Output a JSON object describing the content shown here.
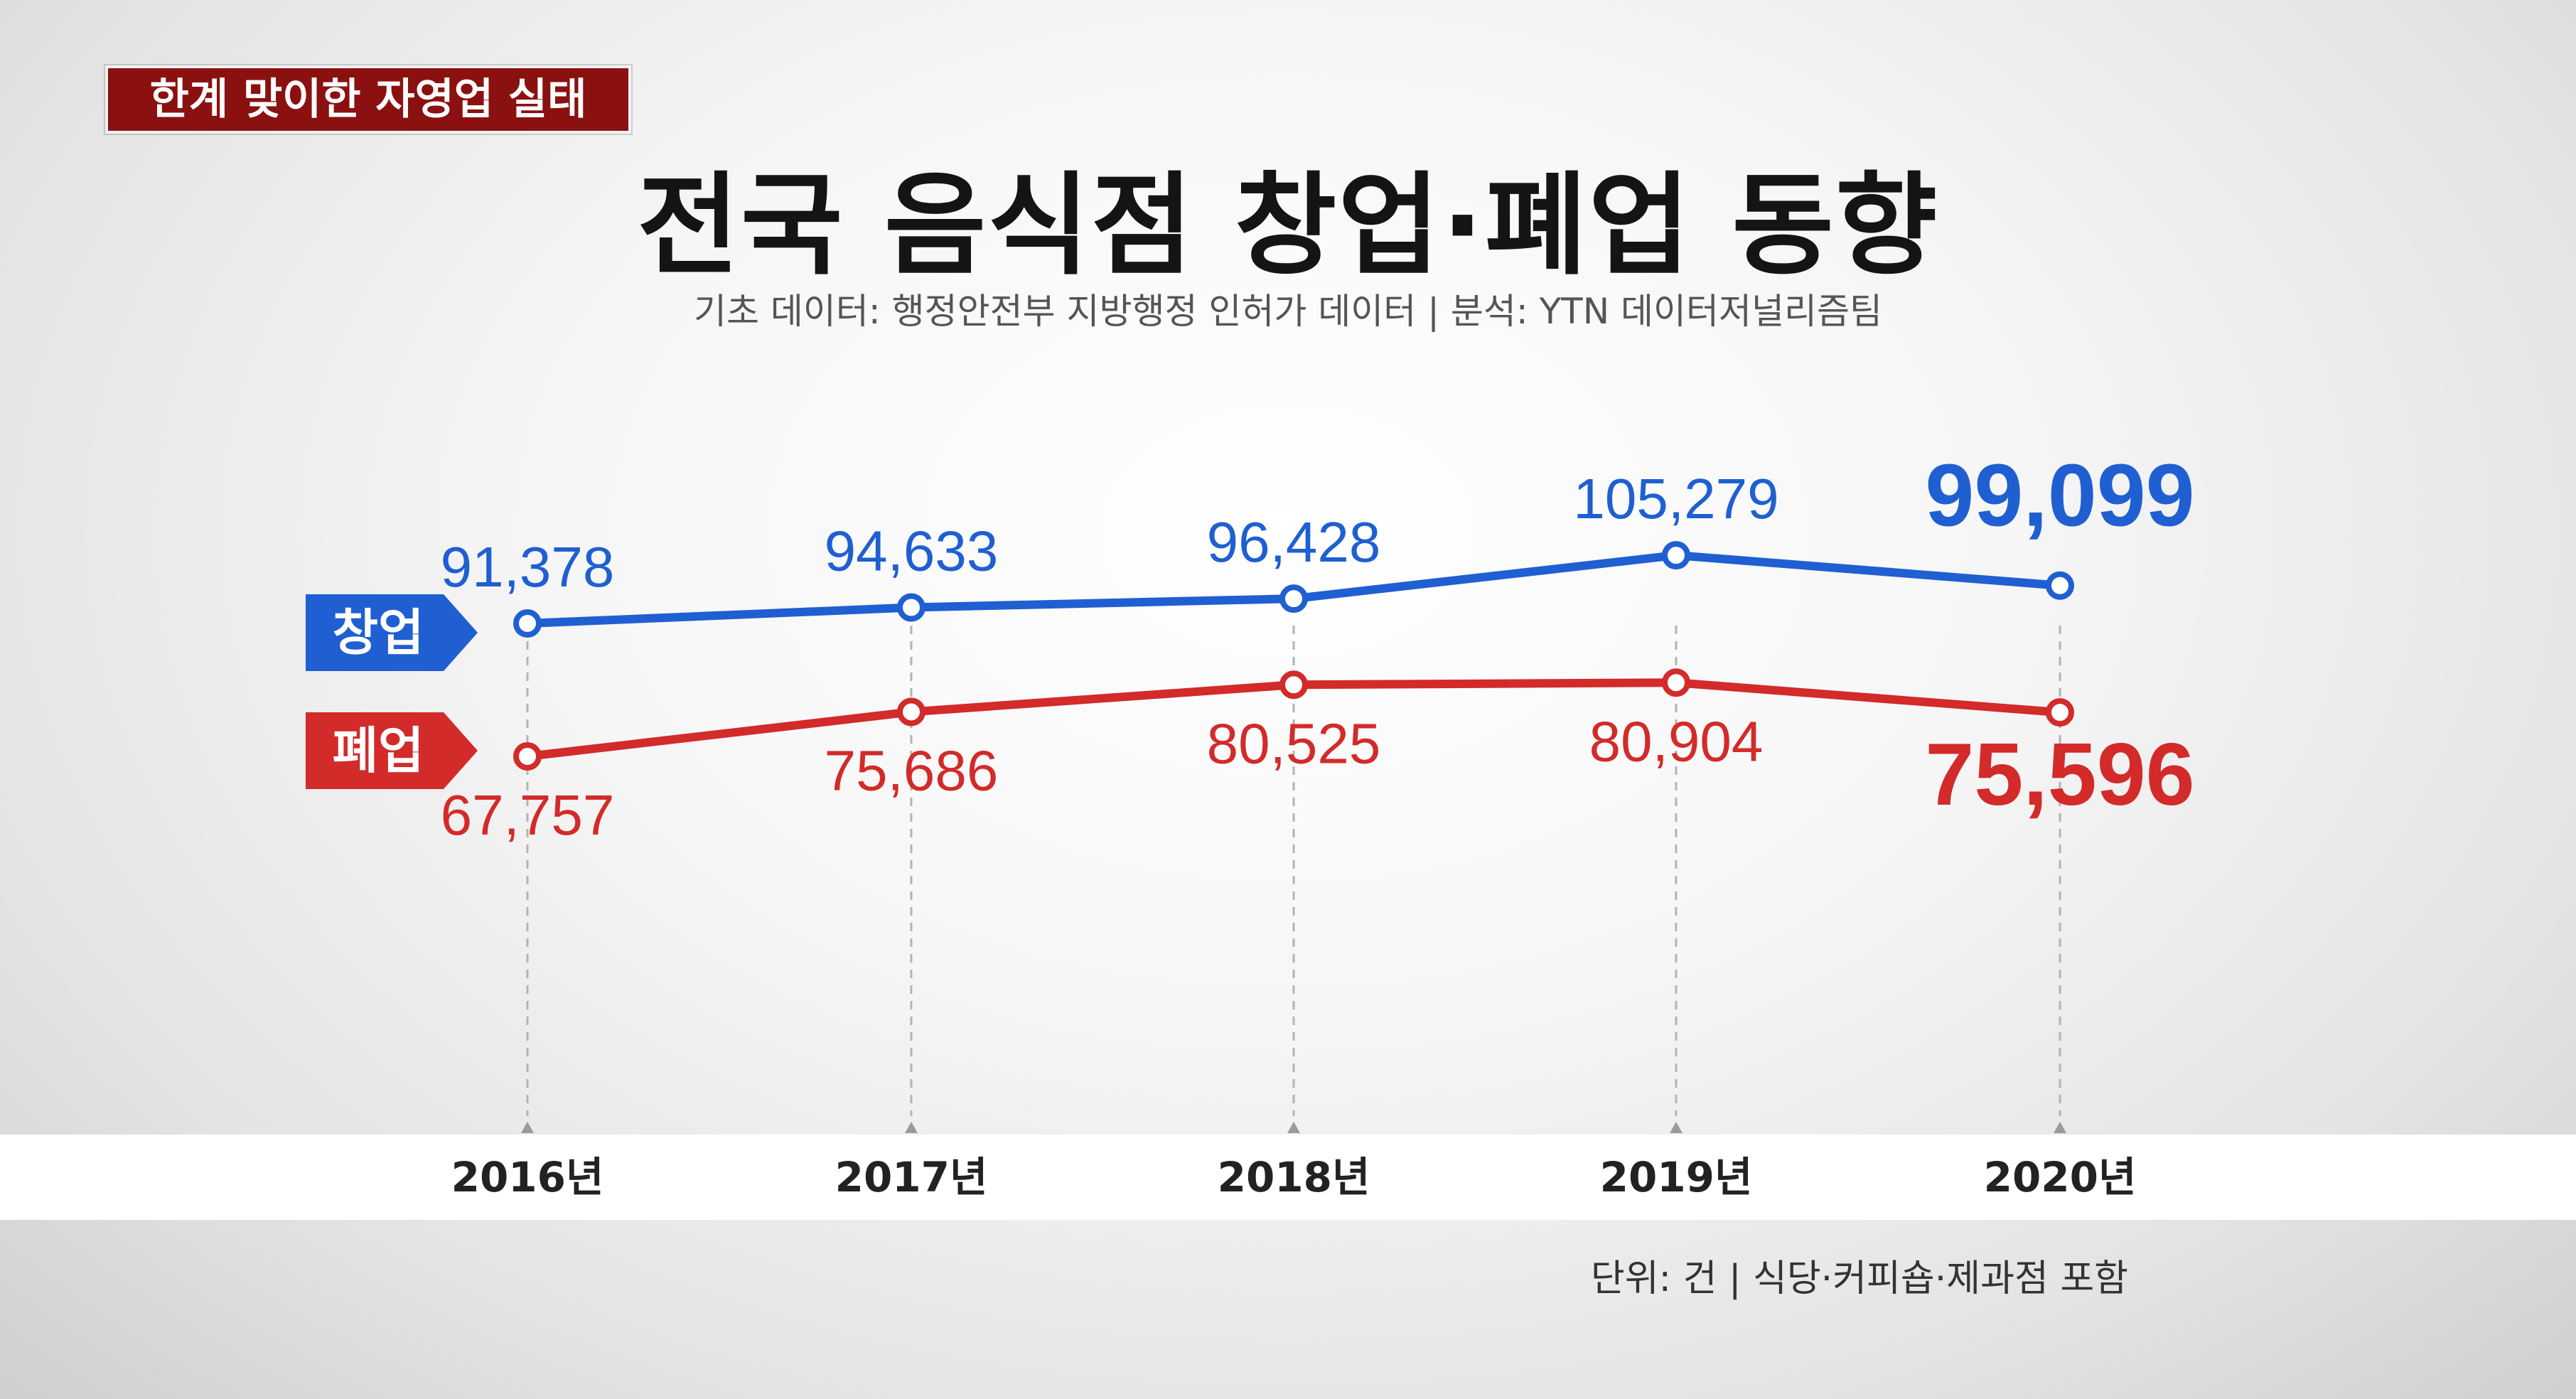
{
  "badge": "한계 맞이한 자영업 실태",
  "title": "전국 음식점 창업·폐업 동향",
  "subtitle": "기초 데이터: 행정안전부 지방행정 인허가 데이터 | 분석: YTN 데이터저널리즘팀",
  "unit_note": "단위: 건 | 식당·커피숍·제과점 포함",
  "chart_data": {
    "type": "line",
    "title": "전국 음식점 창업·폐업 동향",
    "categories": [
      "2016년",
      "2017년",
      "2018년",
      "2019년",
      "2020년"
    ],
    "series": [
      {
        "name": "창업",
        "values": [
          91378,
          94633,
          96428,
          105279,
          99099
        ],
        "labels": [
          "91,378",
          "94,633",
          "96,428",
          "105,279",
          "99,099"
        ],
        "color": "#1f5fd1"
      },
      {
        "name": "폐업",
        "values": [
          67757,
          75686,
          80525,
          80904,
          75596
        ],
        "labels": [
          "67,757",
          "75,686",
          "80,525",
          "80,904",
          "75,596"
        ],
        "color": "#d32a2a"
      }
    ],
    "unit": "건",
    "grid": false,
    "legend": "left"
  }
}
